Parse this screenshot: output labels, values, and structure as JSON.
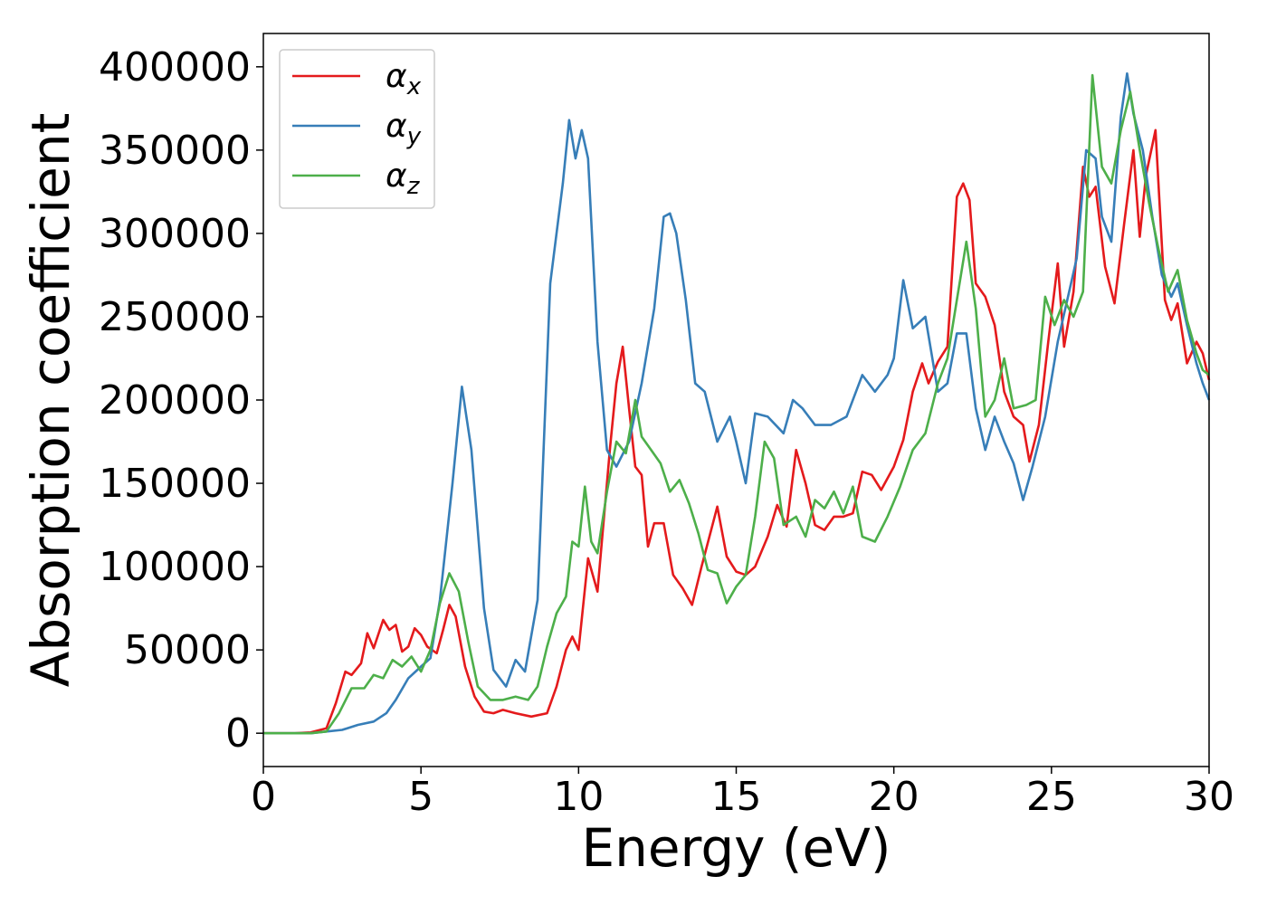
{
  "chart_data": {
    "type": "line",
    "xlabel": "Energy (eV)",
    "ylabel": "Absorption coefficient",
    "xlim": [
      0,
      30
    ],
    "ylim": [
      -20000,
      420000
    ],
    "xticks": [
      0,
      5,
      10,
      15,
      20,
      25,
      30
    ],
    "xtick_labels": [
      "0",
      "5",
      "10",
      "15",
      "20",
      "25",
      "30"
    ],
    "yticks": [
      0,
      50000,
      100000,
      150000,
      200000,
      250000,
      300000,
      350000,
      400000
    ],
    "ytick_labels": [
      "0",
      "50000",
      "100000",
      "150000",
      "200000",
      "250000",
      "300000",
      "350000",
      "400000"
    ],
    "grid": false,
    "legend_position": "top-left",
    "series": [
      {
        "name": "αx",
        "legend_symbol": "α",
        "legend_subscript": "x",
        "color": "#e41a1c",
        "points": [
          [
            0,
            0
          ],
          [
            1,
            0
          ],
          [
            1.5,
            500
          ],
          [
            2,
            3000
          ],
          [
            2.3,
            18000
          ],
          [
            2.6,
            37000
          ],
          [
            2.8,
            35000
          ],
          [
            3.1,
            42000
          ],
          [
            3.3,
            60000
          ],
          [
            3.5,
            51000
          ],
          [
            3.8,
            68000
          ],
          [
            4.0,
            62000
          ],
          [
            4.2,
            65000
          ],
          [
            4.4,
            49000
          ],
          [
            4.6,
            52000
          ],
          [
            4.8,
            63000
          ],
          [
            5.0,
            59000
          ],
          [
            5.2,
            52000
          ],
          [
            5.5,
            48000
          ],
          [
            5.7,
            62000
          ],
          [
            5.9,
            77000
          ],
          [
            6.1,
            70000
          ],
          [
            6.4,
            40000
          ],
          [
            6.7,
            22000
          ],
          [
            7.0,
            13000
          ],
          [
            7.3,
            12000
          ],
          [
            7.6,
            14000
          ],
          [
            8.0,
            12000
          ],
          [
            8.5,
            10000
          ],
          [
            9.0,
            12000
          ],
          [
            9.3,
            28000
          ],
          [
            9.6,
            50000
          ],
          [
            9.8,
            58000
          ],
          [
            10.0,
            50000
          ],
          [
            10.3,
            105000
          ],
          [
            10.6,
            85000
          ],
          [
            11.0,
            172000
          ],
          [
            11.2,
            210000
          ],
          [
            11.4,
            232000
          ],
          [
            11.6,
            195000
          ],
          [
            11.8,
            160000
          ],
          [
            12.0,
            155000
          ],
          [
            12.2,
            112000
          ],
          [
            12.4,
            126000
          ],
          [
            12.7,
            126000
          ],
          [
            13.0,
            95000
          ],
          [
            13.3,
            87000
          ],
          [
            13.6,
            77000
          ],
          [
            13.9,
            100000
          ],
          [
            14.4,
            136000
          ],
          [
            14.7,
            106000
          ],
          [
            15.0,
            97000
          ],
          [
            15.3,
            95000
          ],
          [
            15.6,
            100000
          ],
          [
            16.0,
            118000
          ],
          [
            16.3,
            137000
          ],
          [
            16.6,
            124000
          ],
          [
            16.9,
            170000
          ],
          [
            17.2,
            150000
          ],
          [
            17.5,
            125000
          ],
          [
            17.8,
            122000
          ],
          [
            18.1,
            130000
          ],
          [
            18.4,
            130000
          ],
          [
            18.7,
            132000
          ],
          [
            19.0,
            157000
          ],
          [
            19.3,
            155000
          ],
          [
            19.6,
            146000
          ],
          [
            20.0,
            160000
          ],
          [
            20.3,
            176000
          ],
          [
            20.6,
            205000
          ],
          [
            20.9,
            222000
          ],
          [
            21.1,
            210000
          ],
          [
            21.4,
            223000
          ],
          [
            21.7,
            232000
          ],
          [
            22.0,
            322000
          ],
          [
            22.2,
            330000
          ],
          [
            22.4,
            320000
          ],
          [
            22.6,
            270000
          ],
          [
            22.9,
            262000
          ],
          [
            23.2,
            245000
          ],
          [
            23.5,
            205000
          ],
          [
            23.8,
            190000
          ],
          [
            24.1,
            185000
          ],
          [
            24.3,
            163000
          ],
          [
            24.6,
            185000
          ],
          [
            24.9,
            235000
          ],
          [
            25.2,
            282000
          ],
          [
            25.4,
            232000
          ],
          [
            25.7,
            265000
          ],
          [
            26.0,
            340000
          ],
          [
            26.2,
            322000
          ],
          [
            26.4,
            328000
          ],
          [
            26.7,
            280000
          ],
          [
            27.0,
            258000
          ],
          [
            27.3,
            305000
          ],
          [
            27.6,
            350000
          ],
          [
            27.8,
            298000
          ],
          [
            28.0,
            335000
          ],
          [
            28.3,
            362000
          ],
          [
            28.6,
            260000
          ],
          [
            28.8,
            248000
          ],
          [
            29.0,
            258000
          ],
          [
            29.3,
            222000
          ],
          [
            29.6,
            235000
          ],
          [
            29.8,
            228000
          ],
          [
            30,
            212000
          ]
        ]
      },
      {
        "name": "αy",
        "legend_symbol": "α",
        "legend_subscript": "y",
        "color": "#377eb8",
        "points": [
          [
            0,
            0
          ],
          [
            1.5,
            0
          ],
          [
            2,
            1000
          ],
          [
            2.5,
            2000
          ],
          [
            3,
            5000
          ],
          [
            3.5,
            7000
          ],
          [
            3.9,
            12000
          ],
          [
            4.2,
            20000
          ],
          [
            4.6,
            33000
          ],
          [
            5.0,
            40000
          ],
          [
            5.3,
            45000
          ],
          [
            5.6,
            80000
          ],
          [
            6.0,
            150000
          ],
          [
            6.3,
            208000
          ],
          [
            6.6,
            170000
          ],
          [
            7.0,
            75000
          ],
          [
            7.3,
            38000
          ],
          [
            7.7,
            28000
          ],
          [
            8.0,
            44000
          ],
          [
            8.3,
            37000
          ],
          [
            8.7,
            80000
          ],
          [
            9.1,
            270000
          ],
          [
            9.5,
            330000
          ],
          [
            9.7,
            368000
          ],
          [
            9.9,
            345000
          ],
          [
            10.1,
            362000
          ],
          [
            10.3,
            345000
          ],
          [
            10.6,
            235000
          ],
          [
            10.9,
            170000
          ],
          [
            11.2,
            160000
          ],
          [
            11.6,
            175000
          ],
          [
            12.0,
            210000
          ],
          [
            12.4,
            255000
          ],
          [
            12.7,
            310000
          ],
          [
            12.9,
            312000
          ],
          [
            13.1,
            300000
          ],
          [
            13.4,
            260000
          ],
          [
            13.7,
            210000
          ],
          [
            14.0,
            205000
          ],
          [
            14.4,
            175000
          ],
          [
            14.8,
            190000
          ],
          [
            15.0,
            175000
          ],
          [
            15.3,
            150000
          ],
          [
            15.6,
            192000
          ],
          [
            16.0,
            190000
          ],
          [
            16.5,
            180000
          ],
          [
            16.8,
            200000
          ],
          [
            17.1,
            195000
          ],
          [
            17.5,
            185000
          ],
          [
            18.0,
            185000
          ],
          [
            18.5,
            190000
          ],
          [
            19.0,
            215000
          ],
          [
            19.4,
            205000
          ],
          [
            19.8,
            215000
          ],
          [
            20.0,
            225000
          ],
          [
            20.3,
            272000
          ],
          [
            20.6,
            243000
          ],
          [
            21.0,
            250000
          ],
          [
            21.4,
            205000
          ],
          [
            21.7,
            210000
          ],
          [
            22.0,
            240000
          ],
          [
            22.3,
            240000
          ],
          [
            22.6,
            195000
          ],
          [
            22.9,
            170000
          ],
          [
            23.2,
            190000
          ],
          [
            23.5,
            175000
          ],
          [
            23.8,
            162000
          ],
          [
            24.1,
            140000
          ],
          [
            24.4,
            160000
          ],
          [
            24.8,
            190000
          ],
          [
            25.2,
            235000
          ],
          [
            25.5,
            260000
          ],
          [
            25.8,
            285000
          ],
          [
            26.1,
            350000
          ],
          [
            26.4,
            345000
          ],
          [
            26.6,
            310000
          ],
          [
            26.9,
            295000
          ],
          [
            27.2,
            370000
          ],
          [
            27.4,
            396000
          ],
          [
            27.6,
            372000
          ],
          [
            27.9,
            350000
          ],
          [
            28.2,
            310000
          ],
          [
            28.5,
            275000
          ],
          [
            28.8,
            262000
          ],
          [
            29.0,
            270000
          ],
          [
            29.3,
            245000
          ],
          [
            29.6,
            222000
          ],
          [
            29.8,
            210000
          ],
          [
            30,
            200000
          ]
        ]
      },
      {
        "name": "αz",
        "legend_symbol": "α",
        "legend_subscript": "z",
        "color": "#4daf4a",
        "points": [
          [
            0,
            0
          ],
          [
            1.5,
            0
          ],
          [
            2,
            1000
          ],
          [
            2.4,
            12000
          ],
          [
            2.8,
            27000
          ],
          [
            3.2,
            27000
          ],
          [
            3.5,
            35000
          ],
          [
            3.8,
            33000
          ],
          [
            4.1,
            44000
          ],
          [
            4.4,
            40000
          ],
          [
            4.7,
            46000
          ],
          [
            5.0,
            37000
          ],
          [
            5.3,
            50000
          ],
          [
            5.6,
            78000
          ],
          [
            5.9,
            96000
          ],
          [
            6.2,
            85000
          ],
          [
            6.5,
            55000
          ],
          [
            6.8,
            28000
          ],
          [
            7.2,
            20000
          ],
          [
            7.6,
            20000
          ],
          [
            8.0,
            22000
          ],
          [
            8.4,
            20000
          ],
          [
            8.7,
            28000
          ],
          [
            9.0,
            52000
          ],
          [
            9.3,
            72000
          ],
          [
            9.6,
            82000
          ],
          [
            9.8,
            115000
          ],
          [
            10.0,
            112000
          ],
          [
            10.2,
            148000
          ],
          [
            10.4,
            115000
          ],
          [
            10.6,
            108000
          ],
          [
            10.9,
            145000
          ],
          [
            11.2,
            175000
          ],
          [
            11.5,
            168000
          ],
          [
            11.8,
            200000
          ],
          [
            12.0,
            178000
          ],
          [
            12.3,
            170000
          ],
          [
            12.6,
            162000
          ],
          [
            12.9,
            145000
          ],
          [
            13.2,
            152000
          ],
          [
            13.5,
            138000
          ],
          [
            13.8,
            120000
          ],
          [
            14.1,
            98000
          ],
          [
            14.4,
            96000
          ],
          [
            14.7,
            78000
          ],
          [
            15.0,
            88000
          ],
          [
            15.3,
            95000
          ],
          [
            15.6,
            130000
          ],
          [
            15.9,
            175000
          ],
          [
            16.2,
            165000
          ],
          [
            16.5,
            125000
          ],
          [
            16.9,
            130000
          ],
          [
            17.2,
            118000
          ],
          [
            17.5,
            140000
          ],
          [
            17.8,
            135000
          ],
          [
            18.1,
            145000
          ],
          [
            18.4,
            132000
          ],
          [
            18.7,
            148000
          ],
          [
            19.0,
            118000
          ],
          [
            19.4,
            115000
          ],
          [
            19.8,
            130000
          ],
          [
            20.2,
            148000
          ],
          [
            20.6,
            170000
          ],
          [
            21.0,
            180000
          ],
          [
            21.4,
            210000
          ],
          [
            21.7,
            225000
          ],
          [
            22.0,
            260000
          ],
          [
            22.3,
            295000
          ],
          [
            22.6,
            255000
          ],
          [
            22.9,
            190000
          ],
          [
            23.2,
            200000
          ],
          [
            23.5,
            225000
          ],
          [
            23.8,
            195000
          ],
          [
            24.2,
            197000
          ],
          [
            24.5,
            200000
          ],
          [
            24.8,
            262000
          ],
          [
            25.1,
            245000
          ],
          [
            25.4,
            260000
          ],
          [
            25.7,
            250000
          ],
          [
            26.0,
            265000
          ],
          [
            26.3,
            395000
          ],
          [
            26.6,
            340000
          ],
          [
            26.9,
            330000
          ],
          [
            27.2,
            362000
          ],
          [
            27.5,
            385000
          ],
          [
            27.8,
            350000
          ],
          [
            28.1,
            318000
          ],
          [
            28.4,
            290000
          ],
          [
            28.7,
            265000
          ],
          [
            29.0,
            278000
          ],
          [
            29.3,
            248000
          ],
          [
            29.6,
            228000
          ],
          [
            29.8,
            218000
          ],
          [
            30,
            215000
          ]
        ]
      }
    ]
  }
}
